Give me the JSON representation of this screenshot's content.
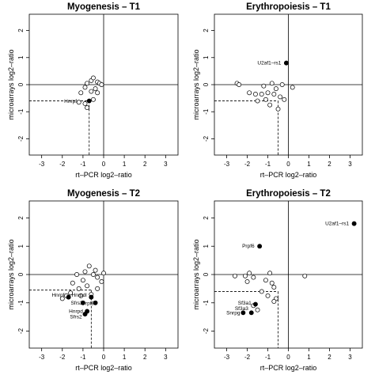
{
  "chart_data": [
    {
      "type": "scatter",
      "title": "Myogenesis – T1",
      "xlabel": "rt–PCR log2–ratio",
      "ylabel": "microarrays log2–ratio",
      "xlim": [
        -3.6,
        3.6
      ],
      "ylim": [
        -2.6,
        2.6
      ],
      "xticks": [
        -3,
        -2,
        -1,
        0,
        1,
        2,
        3
      ],
      "yticks": [
        -2,
        -1,
        0,
        1,
        2
      ],
      "grid": false,
      "marker_colors": {
        "open": "#ffffff",
        "filled": "#000000"
      },
      "highlight": {
        "x": -0.7,
        "y": -0.6
      },
      "points": [
        {
          "x": -1.1,
          "y": -0.3,
          "filled": false
        },
        {
          "x": -0.9,
          "y": -0.1,
          "filled": false
        },
        {
          "x": -0.8,
          "y": 0.05,
          "filled": false
        },
        {
          "x": -0.6,
          "y": 0.15,
          "filled": false
        },
        {
          "x": -0.5,
          "y": 0.25,
          "filled": false
        },
        {
          "x": -0.3,
          "y": 0.1,
          "filled": false
        },
        {
          "x": -0.2,
          "y": 0.05,
          "filled": false
        },
        {
          "x": -0.1,
          "y": 0.0,
          "filled": false
        },
        {
          "x": -0.4,
          "y": -0.15,
          "filled": false
        },
        {
          "x": -0.6,
          "y": -0.25,
          "filled": false
        },
        {
          "x": -0.3,
          "y": -0.3,
          "filled": false
        },
        {
          "x": -1.2,
          "y": -0.65,
          "filled": false
        },
        {
          "x": -0.9,
          "y": -0.7,
          "filled": false
        },
        {
          "x": -0.5,
          "y": -0.55,
          "filled": false
        },
        {
          "x": -0.8,
          "y": -0.85,
          "filled": false
        },
        {
          "x": -0.7,
          "y": -0.6,
          "filled": true
        }
      ],
      "labels": [
        {
          "text": "Hnrpf",
          "x": -1.3,
          "y": -0.62,
          "anchor": "end"
        }
      ]
    },
    {
      "type": "scatter",
      "title": "Erythropoiesis – T1",
      "xlabel": "rt–PCR log2–ratio",
      "ylabel": "microarrays log2–ratio",
      "xlim": [
        -3.6,
        3.6
      ],
      "ylim": [
        -2.6,
        2.6
      ],
      "xticks": [
        -3,
        -2,
        -1,
        0,
        1,
        2,
        3
      ],
      "yticks": [
        -2,
        -1,
        0,
        1,
        2
      ],
      "grid": false,
      "marker_colors": {
        "open": "#ffffff",
        "filled": "#000000"
      },
      "highlight": {
        "x": -0.5,
        "y": -0.6
      },
      "points": [
        {
          "x": -2.5,
          "y": 0.05,
          "filled": false
        },
        {
          "x": -2.4,
          "y": 0.0,
          "filled": false
        },
        {
          "x": -1.9,
          "y": -0.3,
          "filled": false
        },
        {
          "x": -1.6,
          "y": -0.35,
          "filled": false
        },
        {
          "x": -1.5,
          "y": -0.6,
          "filled": false
        },
        {
          "x": -1.2,
          "y": -0.05,
          "filled": false
        },
        {
          "x": -1.0,
          "y": -0.3,
          "filled": false
        },
        {
          "x": -0.9,
          "y": -0.75,
          "filled": false
        },
        {
          "x": -0.8,
          "y": 0.05,
          "filled": false
        },
        {
          "x": -0.7,
          "y": -0.35,
          "filled": false
        },
        {
          "x": -0.6,
          "y": -0.15,
          "filled": false
        },
        {
          "x": -0.5,
          "y": -0.9,
          "filled": false
        },
        {
          "x": -0.3,
          "y": 0.0,
          "filled": false
        },
        {
          "x": -0.2,
          "y": -0.55,
          "filled": false
        },
        {
          "x": 0.2,
          "y": -0.1,
          "filled": false
        },
        {
          "x": -1.1,
          "y": -0.55,
          "filled": false
        },
        {
          "x": -1.3,
          "y": -0.35,
          "filled": false
        },
        {
          "x": -0.4,
          "y": -0.45,
          "filled": false
        },
        {
          "x": -0.1,
          "y": 0.8,
          "filled": true
        }
      ],
      "labels": [
        {
          "text": "U2af1–rs1",
          "x": -0.35,
          "y": 0.8,
          "anchor": "end"
        }
      ]
    },
    {
      "type": "scatter",
      "title": "Myogenesis – T2",
      "xlabel": "rt–PCR log2–ratio",
      "ylabel": "microarrays log2–ratio",
      "xlim": [
        -3.6,
        3.6
      ],
      "ylim": [
        -2.6,
        2.6
      ],
      "xticks": [
        -3,
        -2,
        -1,
        0,
        1,
        2,
        3
      ],
      "yticks": [
        -2,
        -1,
        0,
        1,
        2
      ],
      "grid": false,
      "marker_colors": {
        "open": "#ffffff",
        "filled": "#000000"
      },
      "highlight": {
        "x": -0.6,
        "y": -0.55
      },
      "points": [
        {
          "x": -1.5,
          "y": -0.3,
          "filled": false
        },
        {
          "x": -1.2,
          "y": -0.5,
          "filled": false
        },
        {
          "x": -1.0,
          "y": -0.2,
          "filled": false
        },
        {
          "x": -0.9,
          "y": 0.1,
          "filled": false
        },
        {
          "x": -0.7,
          "y": 0.3,
          "filled": false
        },
        {
          "x": -0.5,
          "y": 0.0,
          "filled": false
        },
        {
          "x": -0.3,
          "y": -0.1,
          "filled": false
        },
        {
          "x": -0.1,
          "y": -0.25,
          "filled": false
        },
        {
          "x": 0.0,
          "y": 0.05,
          "filled": false
        },
        {
          "x": -1.3,
          "y": 0.0,
          "filled": false
        },
        {
          "x": -0.8,
          "y": -0.4,
          "filled": false
        },
        {
          "x": -0.6,
          "y": -0.7,
          "filled": false
        },
        {
          "x": -1.6,
          "y": -0.65,
          "filled": false
        },
        {
          "x": -1.8,
          "y": -0.75,
          "filled": false
        },
        {
          "x": -2.0,
          "y": -0.85,
          "filled": false
        },
        {
          "x": -0.3,
          "y": -0.5,
          "filled": false
        },
        {
          "x": -0.4,
          "y": 0.15,
          "filled": false
        },
        {
          "x": -1.1,
          "y": -0.75,
          "filled": false
        },
        {
          "x": -1.7,
          "y": -0.8,
          "filled": true
        },
        {
          "x": -0.6,
          "y": -0.8,
          "filled": true
        },
        {
          "x": -1.0,
          "y": -1.0,
          "filled": true
        },
        {
          "x": -0.4,
          "y": -1.0,
          "filled": true
        },
        {
          "x": -0.8,
          "y": -1.3,
          "filled": true
        },
        {
          "x": -0.9,
          "y": -1.4,
          "filled": true
        }
      ],
      "labels": [
        {
          "text": "Hnrpf",
          "x": -1.9,
          "y": -0.72,
          "anchor": "end"
        },
        {
          "text": "Hnrpdl",
          "x": -1.55,
          "y": -0.72,
          "anchor": "start"
        },
        {
          "text": "Sfrs3",
          "x": -1.3,
          "y": -1.0,
          "anchor": "middle"
        },
        {
          "text": "Prpf8",
          "x": -0.75,
          "y": -1.02,
          "anchor": "middle"
        },
        {
          "text": "Hnrpd",
          "x": -1.0,
          "y": -1.3,
          "anchor": "end"
        },
        {
          "text": "Sfrs2",
          "x": -1.05,
          "y": -1.5,
          "anchor": "end"
        }
      ]
    },
    {
      "type": "scatter",
      "title": "Erythropoiesis – T2",
      "xlabel": "rt–PCR log2–ratio",
      "ylabel": "microarrays log2–ratio",
      "xlim": [
        -3.6,
        3.6
      ],
      "ylim": [
        -2.6,
        2.6
      ],
      "xticks": [
        -3,
        -2,
        -1,
        0,
        1,
        2,
        3
      ],
      "yticks": [
        -2,
        -1,
        0,
        1,
        2
      ],
      "grid": false,
      "marker_colors": {
        "open": "#ffffff",
        "filled": "#000000"
      },
      "highlight": {
        "x": -0.5,
        "y": -0.6
      },
      "points": [
        {
          "x": -2.6,
          "y": -0.05,
          "filled": false
        },
        {
          "x": -2.0,
          "y": -0.25,
          "filled": false
        },
        {
          "x": -1.9,
          "y": 0.05,
          "filled": false
        },
        {
          "x": -1.7,
          "y": -0.1,
          "filled": false
        },
        {
          "x": -1.3,
          "y": -0.6,
          "filled": false
        },
        {
          "x": -1.1,
          "y": -0.2,
          "filled": false
        },
        {
          "x": -0.9,
          "y": 0.05,
          "filled": false
        },
        {
          "x": -0.8,
          "y": -0.3,
          "filled": false
        },
        {
          "x": -0.7,
          "y": -0.45,
          "filled": false
        },
        {
          "x": -0.6,
          "y": -0.85,
          "filled": false
        },
        {
          "x": -1.0,
          "y": -0.75,
          "filled": false
        },
        {
          "x": -0.7,
          "y": -0.95,
          "filled": false
        },
        {
          "x": -1.7,
          "y": -1.1,
          "filled": false
        },
        {
          "x": -1.5,
          "y": -1.25,
          "filled": false
        },
        {
          "x": -2.1,
          "y": -0.05,
          "filled": false
        },
        {
          "x": 0.8,
          "y": -0.05,
          "filled": false
        },
        {
          "x": 3.2,
          "y": 1.8,
          "filled": true
        },
        {
          "x": -1.4,
          "y": 1.0,
          "filled": true
        },
        {
          "x": -1.6,
          "y": -1.05,
          "filled": true
        },
        {
          "x": -1.8,
          "y": -1.35,
          "filled": true
        },
        {
          "x": -2.2,
          "y": -1.35,
          "filled": true
        }
      ],
      "labels": [
        {
          "text": "U2af1–rs1",
          "x": 2.95,
          "y": 1.8,
          "anchor": "end"
        },
        {
          "text": "Prpf6",
          "x": -1.65,
          "y": 1.0,
          "anchor": "end"
        },
        {
          "text": "Sf3a1",
          "x": -1.8,
          "y": -1.0,
          "anchor": "end"
        },
        {
          "text": "Sf3a3",
          "x": -1.95,
          "y": -1.2,
          "anchor": "end"
        },
        {
          "text": "Snrpg",
          "x": -2.35,
          "y": -1.35,
          "anchor": "end"
        }
      ]
    }
  ]
}
